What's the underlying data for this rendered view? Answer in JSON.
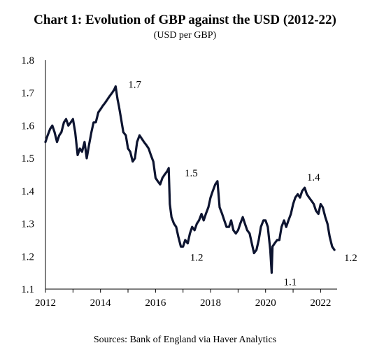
{
  "chart_data": {
    "type": "line",
    "title": "Chart 1: Evolution of GBP against the USD (2012-22)",
    "subtitle": "(USD per GBP)",
    "source": "Sources: Bank of England via Haver Analytics",
    "xlabel": "",
    "ylabel": "",
    "xlim": [
      2012,
      2022.6
    ],
    "ylim": [
      1.1,
      1.8
    ],
    "x_ticks": [
      "2012",
      "2014",
      "2016",
      "2018",
      "2020",
      "2022"
    ],
    "y_ticks": [
      "1.1",
      "1.2",
      "1.3",
      "1.4",
      "1.5",
      "1.6",
      "1.7",
      "1.8"
    ],
    "grid": false,
    "legend": "none",
    "line_color": "#0d1430",
    "series": [
      {
        "x": [
          2012.0,
          2012.08,
          2012.17,
          2012.25,
          2012.33,
          2012.42,
          2012.5,
          2012.58,
          2012.67,
          2012.75,
          2012.83,
          2012.92,
          2013.0,
          2013.08,
          2013.17,
          2013.25,
          2013.33,
          2013.42,
          2013.5,
          2013.58,
          2013.67,
          2013.75,
          2013.83,
          2013.92,
          2014.0,
          2014.08,
          2014.17,
          2014.25,
          2014.33,
          2014.42,
          2014.5,
          2014.55,
          2014.62,
          2014.67,
          2014.75,
          2014.83,
          2014.92,
          2015.0,
          2015.08,
          2015.17,
          2015.25,
          2015.33,
          2015.42,
          2015.5,
          2015.58,
          2015.67,
          2015.75,
          2015.83,
          2015.92,
          2016.0,
          2016.08,
          2016.17,
          2016.25,
          2016.33,
          2016.42,
          2016.48,
          2016.52,
          2016.58,
          2016.67,
          2016.75,
          2016.83,
          2016.92,
          2017.0,
          2017.08,
          2017.17,
          2017.25,
          2017.33,
          2017.42,
          2017.5,
          2017.58,
          2017.67,
          2017.75,
          2017.83,
          2017.92,
          2018.0,
          2018.08,
          2018.17,
          2018.25,
          2018.33,
          2018.42,
          2018.5,
          2018.58,
          2018.67,
          2018.75,
          2018.83,
          2018.92,
          2019.0,
          2019.08,
          2019.17,
          2019.25,
          2019.33,
          2019.42,
          2019.5,
          2019.58,
          2019.67,
          2019.75,
          2019.83,
          2019.92,
          2020.0,
          2020.08,
          2020.17,
          2020.22,
          2020.25,
          2020.33,
          2020.42,
          2020.5,
          2020.58,
          2020.67,
          2020.75,
          2020.83,
          2020.92,
          2021.0,
          2021.08,
          2021.17,
          2021.25,
          2021.33,
          2021.42,
          2021.5,
          2021.58,
          2021.67,
          2021.75,
          2021.83,
          2021.92,
          2022.0,
          2022.08,
          2022.17,
          2022.25,
          2022.33,
          2022.42,
          2022.5
        ],
        "values": [
          1.55,
          1.57,
          1.59,
          1.6,
          1.58,
          1.55,
          1.57,
          1.58,
          1.61,
          1.62,
          1.6,
          1.61,
          1.62,
          1.58,
          1.51,
          1.53,
          1.52,
          1.55,
          1.5,
          1.54,
          1.58,
          1.61,
          1.61,
          1.64,
          1.65,
          1.66,
          1.67,
          1.68,
          1.69,
          1.7,
          1.71,
          1.72,
          1.68,
          1.66,
          1.62,
          1.58,
          1.57,
          1.53,
          1.52,
          1.49,
          1.5,
          1.55,
          1.57,
          1.56,
          1.55,
          1.54,
          1.53,
          1.51,
          1.49,
          1.44,
          1.43,
          1.42,
          1.44,
          1.45,
          1.46,
          1.47,
          1.36,
          1.32,
          1.3,
          1.29,
          1.26,
          1.23,
          1.23,
          1.25,
          1.24,
          1.27,
          1.29,
          1.28,
          1.3,
          1.31,
          1.33,
          1.31,
          1.33,
          1.35,
          1.38,
          1.4,
          1.42,
          1.43,
          1.35,
          1.33,
          1.31,
          1.29,
          1.29,
          1.31,
          1.28,
          1.27,
          1.28,
          1.3,
          1.32,
          1.3,
          1.28,
          1.27,
          1.24,
          1.21,
          1.22,
          1.25,
          1.29,
          1.31,
          1.31,
          1.29,
          1.22,
          1.15,
          1.23,
          1.24,
          1.25,
          1.25,
          1.29,
          1.31,
          1.29,
          1.31,
          1.33,
          1.36,
          1.38,
          1.39,
          1.38,
          1.4,
          1.41,
          1.39,
          1.38,
          1.37,
          1.36,
          1.34,
          1.33,
          1.36,
          1.35,
          1.32,
          1.3,
          1.26,
          1.23,
          1.22
        ]
      }
    ],
    "annotations": [
      {
        "x": 2014.6,
        "y": 1.72,
        "text": "1.7"
      },
      {
        "x": 2016.5,
        "y": 1.47,
        "text": "1.5"
      },
      {
        "x": 2017.0,
        "y": 1.23,
        "text": "1.2"
      },
      {
        "x": 2021.3,
        "y": 1.41,
        "text": "1.4"
      },
      {
        "x": 2020.3,
        "y": 1.15,
        "text": "1.1"
      },
      {
        "x": 2022.6,
        "y": 1.22,
        "text": "1.2"
      }
    ]
  }
}
